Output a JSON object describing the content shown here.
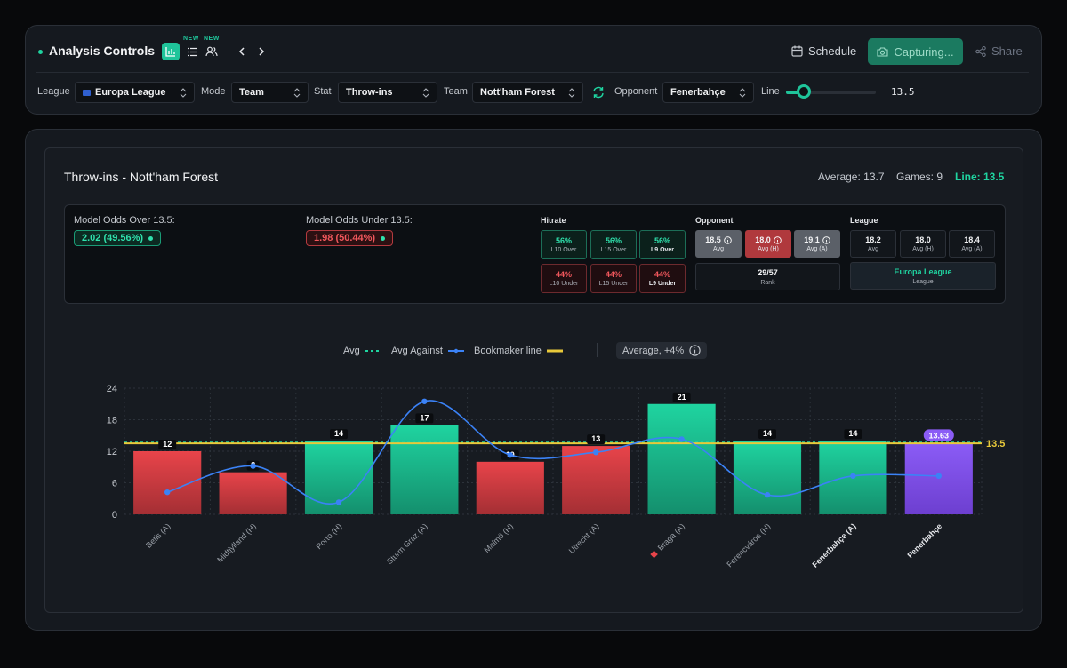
{
  "controls": {
    "title": "Analysis Controls",
    "new_tag_1": "NEW",
    "new_tag_2": "NEW",
    "schedule_label": "Schedule",
    "capture_label": "Capturing...",
    "share_label": "Share",
    "filters": {
      "league_label": "League",
      "league_value": "Europa League",
      "mode_label": "Mode",
      "mode_value": "Team",
      "stat_label": "Stat",
      "stat_value": "Throw-ins",
      "team_label": "Team",
      "team_value": "Nott'ham Forest",
      "opponent_label": "Opponent",
      "opponent_value": "Fenerbahçe",
      "line_label": "Line",
      "line_value": "13.5"
    }
  },
  "header": {
    "title": "Throw-ins - Nott'ham Forest",
    "average": "Average: 13.7",
    "games": "Games: 9",
    "line": "Line: 13.5"
  },
  "odds": {
    "over_label": "Model Odds Over 13.5:",
    "over_value": "2.02 (49.56%)",
    "under_label": "Model Odds Under 13.5:",
    "under_value": "1.98 (50.44%)"
  },
  "hitrate": {
    "title": "Hitrate",
    "over": [
      {
        "value": "56%",
        "label": "L10 Over"
      },
      {
        "value": "56%",
        "label": "L15 Over"
      },
      {
        "value": "56%",
        "label": "L9 Over"
      }
    ],
    "under": [
      {
        "value": "44%",
        "label": "L10 Under"
      },
      {
        "value": "44%",
        "label": "L15 Under"
      },
      {
        "value": "44%",
        "label": "L9 Under"
      }
    ]
  },
  "opponent": {
    "title": "Opponent",
    "cards": [
      {
        "value": "18.5",
        "label": "Avg"
      },
      {
        "value": "18.0",
        "label": "Avg (H)"
      },
      {
        "value": "19.1",
        "label": "Avg (A)"
      }
    ],
    "rank_value": "29/57",
    "rank_label": "Rank"
  },
  "league": {
    "title": "League",
    "cards": [
      {
        "value": "18.2",
        "label": "Avg"
      },
      {
        "value": "18.0",
        "label": "Avg (H)"
      },
      {
        "value": "18.4",
        "label": "Avg (A)"
      }
    ],
    "name_value": "Europa League",
    "name_label": "League"
  },
  "legend": {
    "avg": "Avg",
    "avg_against": "Avg Against",
    "bookmaker": "Bookmaker line",
    "chip": "Average, +4%"
  },
  "colors": {
    "over": "#1fd4a0",
    "under": "#e8444a",
    "projection": "#8b5cf6",
    "avg_against": "#3b82f6",
    "bookmaker": "#e8c93a",
    "avg_line": "#1fd4a0"
  },
  "chart_data": {
    "type": "bar",
    "categories": [
      "Betis (A)",
      "Midtjylland (H)",
      "Porto (H)",
      "Sturm Graz (A)",
      "Malmö (H)",
      "Utrecht (A)",
      "Braga (A)",
      "Ferencváros (H)",
      "Fenerbahçe (A)",
      "Fenerbahçe"
    ],
    "values": [
      12,
      8,
      14,
      17,
      10,
      13,
      21,
      14,
      14,
      13.63
    ],
    "value_labels": [
      "12",
      "8",
      "14",
      "17",
      "10",
      "13",
      "21",
      "14",
      "14",
      "13.63"
    ],
    "bar_status": [
      "under",
      "under",
      "over",
      "over",
      "under",
      "under",
      "over",
      "over",
      "over",
      "projection"
    ],
    "series": [
      {
        "name": "Avg Against",
        "values": [
          4.2,
          9.2,
          2.3,
          21.5,
          11.3,
          11.8,
          14.3,
          3.7,
          7.3,
          7.3
        ]
      }
    ],
    "avg_line": 13.7,
    "bookmaker_line": 13.5,
    "bookmaker_label": "13.5",
    "yticks": [
      "0",
      "6",
      "12",
      "18",
      "24"
    ],
    "ylim": [
      0,
      24
    ],
    "grid": true,
    "legend_position": "top-center"
  }
}
